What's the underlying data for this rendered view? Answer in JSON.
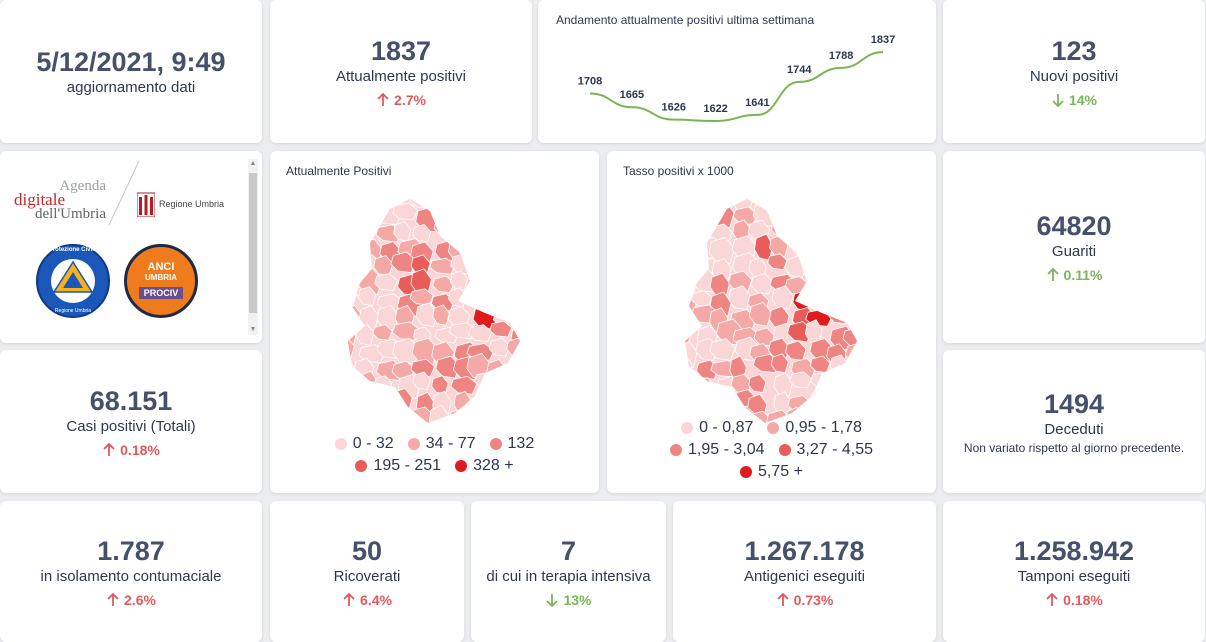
{
  "colors": {
    "up": "#e2595b",
    "down": "#79b55a",
    "level1": "#fbd6d6",
    "level2": "#f4a9a7",
    "level3": "#ef8582",
    "level4": "#e85d5a",
    "level5": "#e01b1f"
  },
  "update": {
    "datetime": "5/12/2021, 9:49",
    "label": "aggiornamento dati"
  },
  "attuali": {
    "value": "1837",
    "label": "Attualmente positivi",
    "delta": "2.7%",
    "direction": "up"
  },
  "trend": {
    "title": "Andamento attualmente positivi ultima settimana",
    "chart_data": {
      "type": "line",
      "title": "Andamento attualmente positivi ultima settimana",
      "x": [
        1,
        2,
        3,
        4,
        5,
        6,
        7,
        8
      ],
      "values": [
        1708,
        1665,
        1626,
        1622,
        1641,
        1744,
        1788,
        1837
      ],
      "ylim": [
        1600,
        1850
      ]
    }
  },
  "nuovi": {
    "value": "123",
    "label": "Nuovi positivi",
    "delta": "14%",
    "direction": "down"
  },
  "logos": {
    "agenda_line1": "Agenda",
    "agenda_line2": "digitale",
    "agenda_line3": "dell'Umbria",
    "regione": "Regione Umbria",
    "protezione": "Protezione Civile",
    "protezione_sub": "Regione Umbria",
    "anci_line1": "ANCI",
    "anci_line2": "UMBRIA",
    "anci_line3": "PROCIV"
  },
  "map_positivi": {
    "title": "Attualmente Positivi",
    "legend": [
      "0 - 32",
      "34 - 77",
      "132",
      "195 - 251",
      "328 +"
    ]
  },
  "map_tasso": {
    "title": "Tasso positivi x 1000",
    "legend": [
      "0 - 0,87",
      "0,95 - 1,78",
      "1,95 - 3,04",
      "3,27 - 4,55",
      "5,75 +"
    ]
  },
  "guariti": {
    "value": "64820",
    "label": "Guariti",
    "delta": "0.11%",
    "direction": "up"
  },
  "casi": {
    "value": "68.151",
    "label": "Casi positivi (Totali)",
    "delta": "0.18%",
    "direction": "up"
  },
  "deceduti": {
    "value": "1494",
    "label": "Deceduti",
    "sub": "Non variato rispetto al giorno precedente."
  },
  "isolamento": {
    "value": "1.787",
    "label": "in isolamento contumaciale",
    "delta": "2.6%",
    "direction": "up"
  },
  "ricoverati": {
    "value": "50",
    "label": "Ricoverati",
    "delta": "6.4%",
    "direction": "up"
  },
  "terapia": {
    "value": "7",
    "label": "di cui in terapia intensiva",
    "delta": "13%",
    "direction": "down"
  },
  "antigenici": {
    "value": "1.267.178",
    "label": "Antigenici eseguiti",
    "delta": "0.73%",
    "direction": "up"
  },
  "tamponi": {
    "value": "1.258.942",
    "label": "Tamponi eseguiti",
    "delta": "0.18%",
    "direction": "up"
  }
}
